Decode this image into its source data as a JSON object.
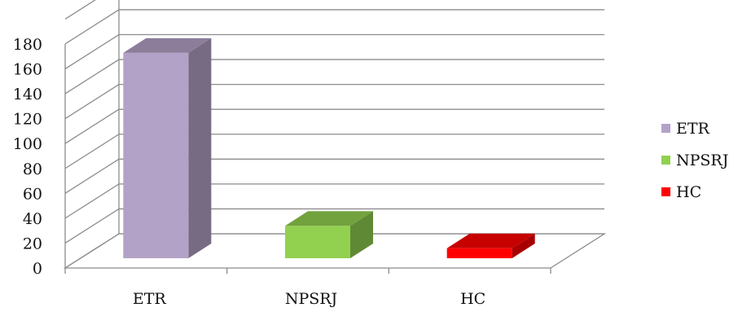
{
  "chart_data": {
    "type": "bar",
    "categories": [
      "ETR",
      "NPSRJ",
      "HC"
    ],
    "series": [
      {
        "name": "ETR",
        "values": [
          165,
          null,
          null
        ],
        "color": "#b3a2c7"
      },
      {
        "name": "NPSRJ",
        "values": [
          null,
          26,
          null
        ],
        "color": "#92d050"
      },
      {
        "name": "HC",
        "values": [
          null,
          null,
          8
        ],
        "color": "#ff0000"
      }
    ],
    "values": [
      165,
      26,
      8
    ],
    "yticks": [
      "0",
      "20",
      "40",
      "60",
      "80",
      "100",
      "120",
      "140",
      "160",
      "180"
    ],
    "ylim": [
      0,
      200
    ],
    "grid": true,
    "three_d": true,
    "legend": {
      "placement": "right",
      "entries": [
        {
          "label": "ETR",
          "color": "#b3a2c7"
        },
        {
          "label": "NPSRJ",
          "color": "#92d050"
        },
        {
          "label": "HC",
          "color": "#ff0000"
        }
      ]
    },
    "title": "",
    "xlabel": "",
    "ylabel": ""
  }
}
